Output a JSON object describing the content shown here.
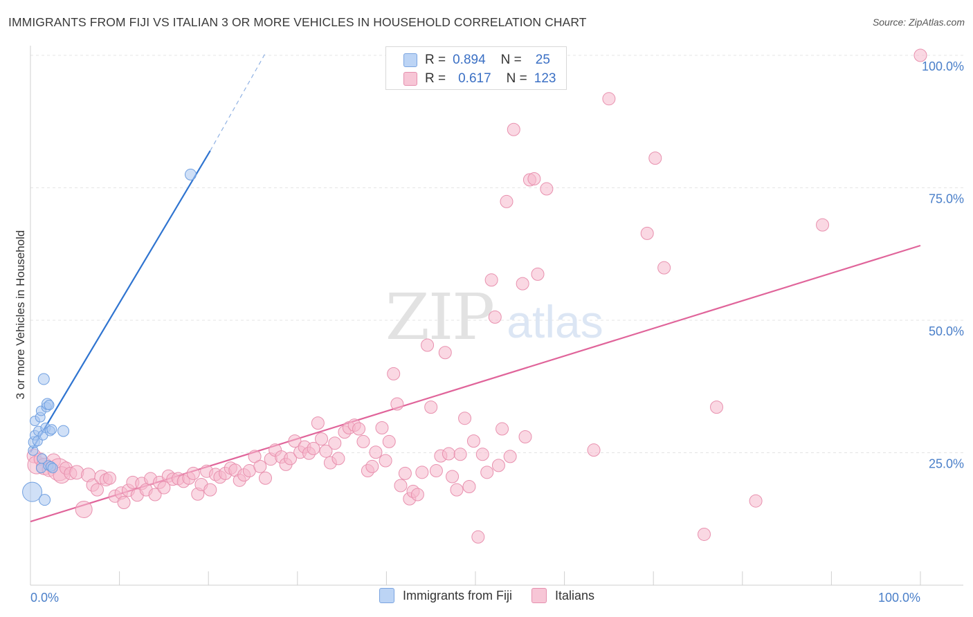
{
  "title": "IMMIGRANTS FROM FIJI VS ITALIAN 3 OR MORE VEHICLES IN HOUSEHOLD CORRELATION CHART",
  "source": "Source: ZipAtlas.com",
  "watermark": {
    "zip": "ZIP",
    "atlas": "atlas"
  },
  "stats": [
    {
      "r_label": "R =",
      "r_value": "0.894",
      "n_label": "N =",
      "n_value": "25"
    },
    {
      "r_label": "R =",
      "r_value": "0.617",
      "n_label": "N =",
      "n_value": "123"
    }
  ],
  "legend": [
    "Immigrants from Fiji",
    "Italians"
  ],
  "colors": {
    "blue_fill": "#a9c7f0",
    "blue_stroke": "#6f9fe0",
    "blue_line": "#2f74d0",
    "pink_fill": "#f5b8cc",
    "pink_stroke": "#e890ae",
    "pink_line": "#e0649a",
    "tick_label": "#4a7fc9"
  },
  "chart_data": {
    "type": "scatter",
    "ylabel": "3 or more Vehicles in Household",
    "xlim": [
      0,
      100
    ],
    "ylim": [
      0,
      102
    ],
    "x_tick_labels": [
      {
        "value": 0,
        "label": "0.0%"
      },
      {
        "value": 100,
        "label": "100.0%"
      }
    ],
    "y_tick_labels": [
      {
        "value": 25,
        "label": "25.0%"
      },
      {
        "value": 50,
        "label": "50.0%"
      },
      {
        "value": 75,
        "label": "75.0%"
      },
      {
        "value": 100,
        "label": "100.0%"
      }
    ],
    "grid": true,
    "series": [
      {
        "name": "Immigrants from Fiji",
        "color": "#a9c7f0",
        "points": [
          [
            0.2,
            17.6,
            14
          ],
          [
            0.3,
            25.4,
            7
          ],
          [
            0.4,
            27.0,
            8
          ],
          [
            0.5,
            28.3,
            7
          ],
          [
            0.5,
            31.0,
            7
          ],
          [
            0.8,
            27.2,
            7
          ],
          [
            0.9,
            29.1,
            7
          ],
          [
            1.1,
            31.7,
            7
          ],
          [
            1.2,
            32.9,
            7
          ],
          [
            1.2,
            22.1,
            7
          ],
          [
            1.4,
            28.3,
            7
          ],
          [
            1.5,
            38.9,
            8
          ],
          [
            1.6,
            16.1,
            8
          ],
          [
            1.7,
            29.7,
            7
          ],
          [
            1.8,
            33.6,
            7
          ],
          [
            1.9,
            34.2,
            8
          ],
          [
            2.0,
            22.6,
            7
          ],
          [
            2.1,
            34.0,
            7
          ],
          [
            2.2,
            29.1,
            7
          ],
          [
            2.3,
            22.4,
            7
          ],
          [
            2.4,
            29.4,
            7
          ],
          [
            2.5,
            22.1,
            7
          ],
          [
            3.7,
            29.1,
            8
          ],
          [
            18.0,
            77.5,
            8
          ],
          [
            1.3,
            23.9,
            7
          ]
        ],
        "trend": {
          "x0": 0.0,
          "y0": 25.1,
          "x1": 20.2,
          "y1": 82.0,
          "dashed_x1": 26.5,
          "dashed_y1": 100.7
        }
      },
      {
        "name": "Italians",
        "color": "#f5b8cc",
        "points": [
          [
            0.4,
            24.4,
            10
          ],
          [
            0.7,
            22.7,
            13
          ],
          [
            1.1,
            23.8,
            9
          ],
          [
            1.6,
            22.4,
            12
          ],
          [
            2.1,
            21.8,
            10
          ],
          [
            2.6,
            23.5,
            10
          ],
          [
            3.2,
            21.8,
            16
          ],
          [
            3.5,
            20.8,
            12
          ],
          [
            4.0,
            22.1,
            9
          ],
          [
            4.5,
            21.1,
            9
          ],
          [
            5.2,
            21.3,
            10
          ],
          [
            6.0,
            14.3,
            12
          ],
          [
            6.5,
            20.8,
            10
          ],
          [
            7.0,
            18.9,
            9
          ],
          [
            7.5,
            18.0,
            9
          ],
          [
            8.0,
            20.4,
            10
          ],
          [
            8.5,
            19.9,
            9
          ],
          [
            8.9,
            20.2,
            9
          ],
          [
            9.5,
            16.8,
            9
          ],
          [
            10.2,
            17.4,
            9
          ],
          [
            10.5,
            15.6,
            9
          ],
          [
            11.0,
            17.9,
            9
          ],
          [
            11.5,
            19.4,
            9
          ],
          [
            12.0,
            17.0,
            9
          ],
          [
            12.5,
            19.2,
            9
          ],
          [
            13.0,
            18.0,
            9
          ],
          [
            13.5,
            20.1,
            9
          ],
          [
            14.0,
            17.1,
            9
          ],
          [
            14.5,
            19.4,
            9
          ],
          [
            15.0,
            18.4,
            9
          ],
          [
            15.5,
            20.6,
            9
          ],
          [
            16.0,
            20.0,
            9
          ],
          [
            16.6,
            20.1,
            9
          ],
          [
            17.2,
            19.6,
            9
          ],
          [
            17.8,
            20.2,
            9
          ],
          [
            18.3,
            21.1,
            9
          ],
          [
            18.8,
            17.2,
            9
          ],
          [
            19.2,
            19.0,
            9
          ],
          [
            19.8,
            21.5,
            9
          ],
          [
            20.2,
            18.0,
            9
          ],
          [
            20.8,
            20.9,
            9
          ],
          [
            21.3,
            20.4,
            9
          ],
          [
            21.9,
            21.1,
            9
          ],
          [
            22.5,
            22.1,
            9
          ],
          [
            23.0,
            21.7,
            9
          ],
          [
            23.5,
            19.8,
            9
          ],
          [
            24.0,
            20.8,
            9
          ],
          [
            24.6,
            21.6,
            9
          ],
          [
            25.2,
            24.3,
            9
          ],
          [
            25.8,
            22.4,
            9
          ],
          [
            26.4,
            20.2,
            9
          ],
          [
            27.0,
            23.8,
            9
          ],
          [
            27.5,
            25.5,
            9
          ],
          [
            28.2,
            24.2,
            9
          ],
          [
            28.7,
            22.8,
            9
          ],
          [
            29.2,
            23.9,
            9
          ],
          [
            29.7,
            27.2,
            9
          ],
          [
            30.3,
            25.1,
            9
          ],
          [
            30.8,
            26.1,
            9
          ],
          [
            31.3,
            24.9,
            9
          ],
          [
            31.8,
            25.8,
            9
          ],
          [
            32.3,
            30.6,
            9
          ],
          [
            32.7,
            27.6,
            9
          ],
          [
            33.2,
            25.3,
            9
          ],
          [
            33.7,
            23.1,
            9
          ],
          [
            34.2,
            26.8,
            9
          ],
          [
            34.6,
            23.9,
            9
          ],
          [
            35.3,
            28.9,
            9
          ],
          [
            35.8,
            29.7,
            9
          ],
          [
            36.4,
            30.2,
            9
          ],
          [
            36.9,
            29.5,
            9
          ],
          [
            37.4,
            27.1,
            9
          ],
          [
            37.9,
            21.6,
            9
          ],
          [
            38.4,
            22.4,
            9
          ],
          [
            38.8,
            25.1,
            9
          ],
          [
            39.5,
            29.7,
            9
          ],
          [
            39.9,
            23.5,
            9
          ],
          [
            40.3,
            27.1,
            9
          ],
          [
            40.8,
            39.9,
            9
          ],
          [
            41.2,
            34.2,
            9
          ],
          [
            41.6,
            18.8,
            9
          ],
          [
            42.1,
            21.1,
            9
          ],
          [
            42.6,
            16.3,
            9
          ],
          [
            43.0,
            17.7,
            9
          ],
          [
            43.5,
            17.1,
            9
          ],
          [
            44.0,
            21.3,
            9
          ],
          [
            44.6,
            45.3,
            9
          ],
          [
            45.0,
            33.6,
            9
          ],
          [
            45.6,
            21.6,
            9
          ],
          [
            46.1,
            24.4,
            9
          ],
          [
            46.6,
            43.9,
            9
          ],
          [
            47.0,
            24.8,
            9
          ],
          [
            47.4,
            20.5,
            9
          ],
          [
            47.9,
            18.0,
            9
          ],
          [
            48.3,
            24.7,
            9
          ],
          [
            48.8,
            31.5,
            9
          ],
          [
            49.3,
            18.6,
            9
          ],
          [
            49.8,
            27.2,
            9
          ],
          [
            50.3,
            9.1,
            9
          ],
          [
            50.8,
            24.7,
            9
          ],
          [
            51.3,
            21.3,
            9
          ],
          [
            51.8,
            57.6,
            9
          ],
          [
            52.2,
            50.6,
            9
          ],
          [
            52.6,
            22.6,
            9
          ],
          [
            53.0,
            29.5,
            9
          ],
          [
            53.5,
            72.4,
            9
          ],
          [
            53.9,
            24.3,
            9
          ],
          [
            54.3,
            86.0,
            9
          ],
          [
            55.3,
            56.9,
            9
          ],
          [
            55.6,
            28.0,
            9
          ],
          [
            56.1,
            76.5,
            9
          ],
          [
            56.6,
            76.7,
            9
          ],
          [
            57.0,
            58.7,
            9
          ],
          [
            58.0,
            74.8,
            9
          ],
          [
            63.3,
            25.5,
            9
          ],
          [
            65.0,
            91.8,
            9
          ],
          [
            69.3,
            66.4,
            9
          ],
          [
            70.2,
            80.6,
            9
          ],
          [
            71.2,
            59.9,
            9
          ],
          [
            75.7,
            9.6,
            9
          ],
          [
            77.1,
            33.6,
            9
          ],
          [
            81.5,
            15.9,
            9
          ],
          [
            89.0,
            68.0,
            9
          ],
          [
            100.0,
            100.0,
            9
          ]
        ],
        "trend": {
          "x0": 0.0,
          "y0": 12.0,
          "x1": 100.0,
          "y1": 64.1
        }
      }
    ]
  }
}
